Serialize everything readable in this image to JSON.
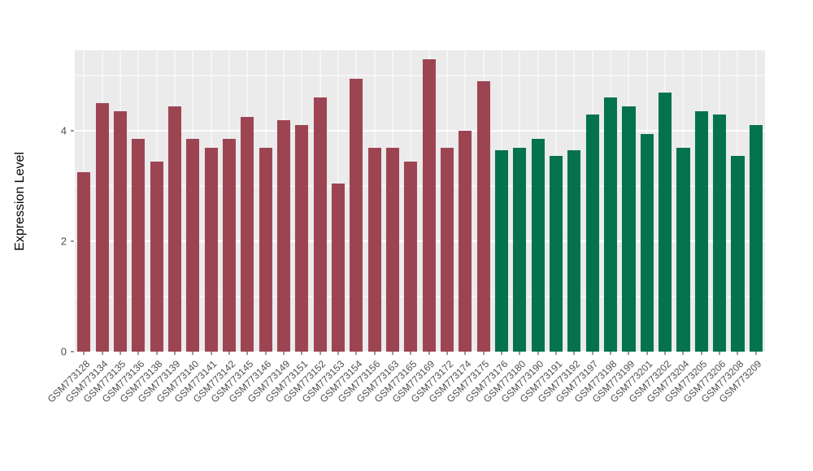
{
  "chart_data": {
    "type": "bar",
    "title": "",
    "xlabel": "",
    "ylabel": "Expression Level",
    "ylim": [
      0,
      5.46
    ],
    "yticks_major": [
      0,
      2,
      4
    ],
    "yticks_minor": [
      1,
      3,
      5
    ],
    "grid": true,
    "legend_position": "none",
    "panel_bg": "#ebebeb",
    "grid_color": "#ffffff",
    "categories": [
      "GSM773128",
      "GSM773134",
      "GSM773135",
      "GSM773136",
      "GSM773138",
      "GSM773139",
      "GSM773140",
      "GSM773141",
      "GSM773142",
      "GSM773145",
      "GSM773146",
      "GSM773149",
      "GSM773151",
      "GSM773152",
      "GSM773153",
      "GSM773154",
      "GSM773156",
      "GSM773163",
      "GSM773165",
      "GSM773169",
      "GSM773172",
      "GSM773174",
      "GSM773175",
      "GSM773176",
      "GSM773180",
      "GSM773190",
      "GSM773191",
      "GSM773192",
      "GSM773197",
      "GSM773198",
      "GSM773199",
      "GSM773201",
      "GSM773202",
      "GSM773204",
      "GSM773205",
      "GSM773206",
      "GSM773208",
      "GSM773209"
    ],
    "values": [
      3.25,
      4.5,
      4.35,
      3.85,
      3.45,
      4.45,
      3.85,
      3.7,
      3.85,
      4.25,
      3.7,
      4.2,
      4.1,
      4.6,
      3.05,
      4.95,
      3.7,
      3.7,
      3.45,
      5.3,
      3.7,
      4.0,
      4.9,
      3.65,
      3.7,
      3.85,
      3.55,
      3.65,
      4.3,
      4.6,
      4.45,
      3.95,
      4.7,
      3.7,
      4.35,
      4.3,
      3.55,
      4.1
    ],
    "groups": [
      "group1",
      "group1",
      "group1",
      "group1",
      "group1",
      "group1",
      "group1",
      "group1",
      "group1",
      "group1",
      "group1",
      "group1",
      "group1",
      "group1",
      "group1",
      "group1",
      "group1",
      "group1",
      "group1",
      "group1",
      "group1",
      "group1",
      "group1",
      "group2",
      "group2",
      "group2",
      "group2",
      "group2",
      "group2",
      "group2",
      "group2",
      "group2",
      "group2",
      "group2",
      "group2",
      "group2",
      "group2",
      "group2"
    ],
    "group_colors": {
      "group1": "#9d4452",
      "group2": "#04724d"
    },
    "bar_width_fraction": 0.72
  }
}
